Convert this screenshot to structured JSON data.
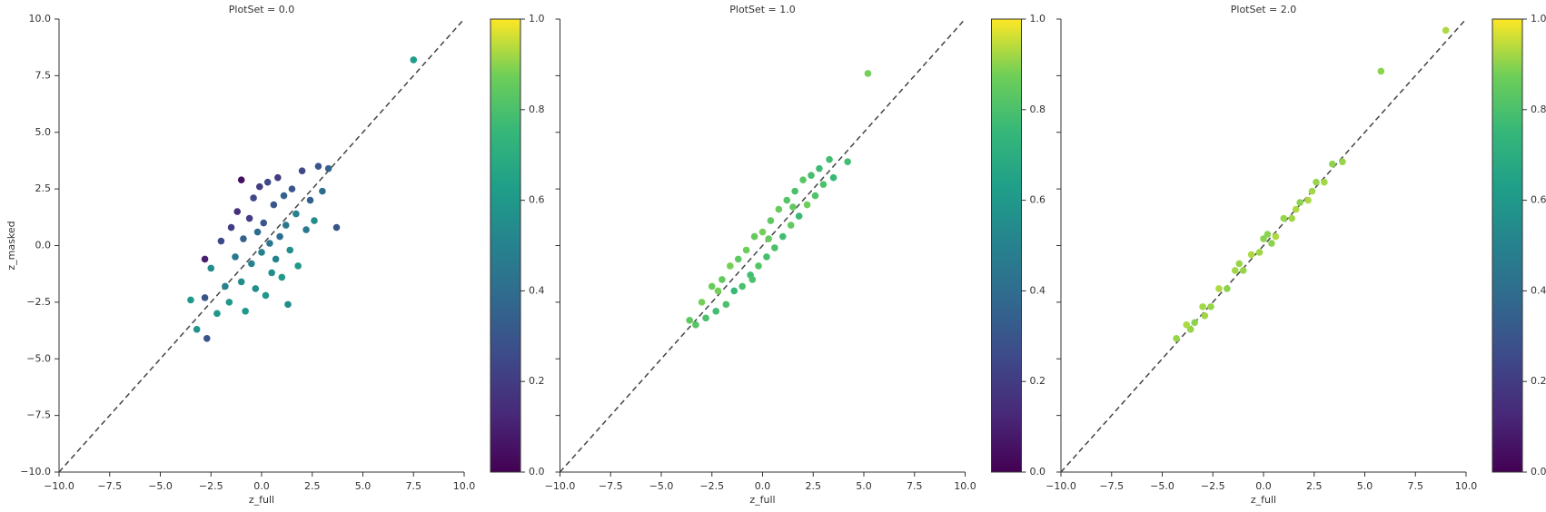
{
  "chart_data": [
    {
      "type": "scatter",
      "title": "PlotSet = 0.0",
      "xlabel": "z_full",
      "ylabel": "z_masked",
      "xlim": [
        -10,
        10
      ],
      "ylim": [
        -10,
        10
      ],
      "xticks": [
        {
          "value": -10,
          "label": "−10.0"
        },
        {
          "value": -7.5,
          "label": "−7.5"
        },
        {
          "value": -5,
          "label": "−5.0"
        },
        {
          "value": -2.5,
          "label": "−2.5"
        },
        {
          "value": 0,
          "label": "0.0"
        },
        {
          "value": 2.5,
          "label": "2.5"
        },
        {
          "value": 5,
          "label": "5.0"
        },
        {
          "value": 7.5,
          "label": "7.5"
        },
        {
          "value": 10,
          "label": "10.0"
        }
      ],
      "yticks": [
        {
          "value": -10,
          "label": "−10.0"
        },
        {
          "value": -7.5,
          "label": "−7.5"
        },
        {
          "value": -5,
          "label": "−5.0"
        },
        {
          "value": -2.5,
          "label": "−2.5"
        },
        {
          "value": 0,
          "label": "0.0"
        },
        {
          "value": 2.5,
          "label": "2.5"
        },
        {
          "value": 5,
          "label": "5.0"
        },
        {
          "value": 7.5,
          "label": "7.5"
        },
        {
          "value": 10,
          "label": "10.0"
        }
      ],
      "ytick_labels": true,
      "x": [
        -2.8,
        -2.5,
        -2.2,
        -2.0,
        -1.8,
        -1.6,
        -1.5,
        -1.3,
        -1.2,
        -1.0,
        -0.9,
        -0.8,
        -0.6,
        -0.5,
        -0.4,
        -0.3,
        -0.2,
        -0.1,
        0.0,
        0.1,
        0.2,
        0.3,
        0.4,
        0.5,
        0.6,
        0.7,
        0.8,
        0.9,
        1.0,
        1.1,
        1.2,
        1.4,
        1.5,
        1.7,
        1.8,
        2.0,
        2.2,
        2.4,
        2.6,
        2.8,
        3.0,
        3.3,
        -3.5,
        -3.2,
        -2.7,
        3.7,
        7.5,
        -2.8,
        1.3,
        -1.0
      ],
      "y": [
        -2.3,
        -1.0,
        -3.0,
        0.2,
        -1.8,
        -2.5,
        0.8,
        -0.5,
        1.5,
        -1.6,
        0.3,
        -2.9,
        1.2,
        -0.8,
        2.1,
        -1.9,
        0.6,
        2.6,
        -0.3,
        1.0,
        -2.2,
        2.8,
        0.1,
        -1.2,
        1.8,
        -0.6,
        3.0,
        0.4,
        -1.4,
        2.2,
        0.9,
        -0.2,
        2.5,
        1.4,
        -0.9,
        3.3,
        0.7,
        2.0,
        1.1,
        3.5,
        2.4,
        3.4,
        -2.4,
        -3.7,
        -4.1,
        0.8,
        8.2,
        -0.6,
        -2.6,
        2.9
      ],
      "c": [
        0.3,
        0.55,
        0.6,
        0.25,
        0.5,
        0.6,
        0.2,
        0.45,
        0.15,
        0.55,
        0.35,
        0.6,
        0.2,
        0.5,
        0.25,
        0.55,
        0.4,
        0.2,
        0.5,
        0.3,
        0.6,
        0.25,
        0.45,
        0.55,
        0.3,
        0.5,
        0.2,
        0.4,
        0.6,
        0.35,
        0.45,
        0.55,
        0.3,
        0.5,
        0.6,
        0.25,
        0.45,
        0.35,
        0.55,
        0.3,
        0.4,
        0.35,
        0.6,
        0.58,
        0.3,
        0.3,
        0.62,
        0.1,
        0.55,
        0.05
      ],
      "colormap": "viridis",
      "clim": [
        0,
        1
      ],
      "cticks": [
        {
          "value": 0,
          "label": "0.0"
        },
        {
          "value": 0.2,
          "label": "0.2"
        },
        {
          "value": 0.4,
          "label": "0.4"
        },
        {
          "value": 0.6,
          "label": "0.6"
        },
        {
          "value": 0.8,
          "label": "0.8"
        },
        {
          "value": 1,
          "label": "1.0"
        }
      ]
    },
    {
      "type": "scatter",
      "title": "PlotSet = 1.0",
      "xlabel": "z_full",
      "xlim": [
        -10,
        10
      ],
      "ylim": [
        -10,
        10
      ],
      "xticks": [
        {
          "value": -10,
          "label": "−10.0"
        },
        {
          "value": -7.5,
          "label": "−7.5"
        },
        {
          "value": -5,
          "label": "−5.0"
        },
        {
          "value": -2.5,
          "label": "−2.5"
        },
        {
          "value": 0,
          "label": "0.0"
        },
        {
          "value": 2.5,
          "label": "2.5"
        },
        {
          "value": 5,
          "label": "5.0"
        },
        {
          "value": 7.5,
          "label": "7.5"
        },
        {
          "value": 10,
          "label": "10.0"
        }
      ],
      "yticks": [
        -10,
        -7.5,
        -5,
        -2.5,
        0,
        2.5,
        5,
        7.5,
        10
      ],
      "ytick_labels": false,
      "x": [
        -3.3,
        -3.0,
        -2.8,
        -2.5,
        -2.3,
        -2.0,
        -1.8,
        -1.6,
        -1.4,
        -1.2,
        -1.0,
        -0.8,
        -0.6,
        -0.4,
        -0.2,
        0.0,
        0.2,
        0.4,
        0.6,
        0.8,
        1.0,
        1.2,
        1.4,
        1.6,
        1.8,
        2.0,
        2.2,
        2.4,
        2.6,
        2.8,
        3.0,
        3.3,
        3.5,
        4.2,
        5.2,
        -3.6,
        1.5,
        -0.5,
        0.3,
        -2.2
      ],
      "y": [
        -3.5,
        -2.5,
        -3.2,
        -1.8,
        -2.9,
        -1.5,
        -2.6,
        -0.9,
        -2.0,
        -0.6,
        -1.8,
        -0.2,
        -1.3,
        0.4,
        -0.9,
        0.6,
        -0.5,
        1.1,
        -0.1,
        1.6,
        0.4,
        2.0,
        0.9,
        2.4,
        1.3,
        2.9,
        1.8,
        3.1,
        2.2,
        3.4,
        2.7,
        3.8,
        3.0,
        3.7,
        7.6,
        -3.3,
        1.7,
        -1.5,
        0.3,
        -2.0
      ],
      "c": [
        0.82,
        0.88,
        0.8,
        0.86,
        0.78,
        0.85,
        0.8,
        0.88,
        0.76,
        0.84,
        0.8,
        0.87,
        0.78,
        0.85,
        0.82,
        0.88,
        0.79,
        0.84,
        0.8,
        0.86,
        0.78,
        0.82,
        0.85,
        0.8,
        0.76,
        0.83,
        0.87,
        0.79,
        0.81,
        0.77,
        0.8,
        0.78,
        0.76,
        0.78,
        0.88,
        0.84,
        0.85,
        0.8,
        0.86,
        0.88
      ],
      "colormap": "viridis",
      "clim": [
        0,
        1
      ],
      "cticks": [
        {
          "value": 0,
          "label": "0.0"
        },
        {
          "value": 0.2,
          "label": "0.2"
        },
        {
          "value": 0.4,
          "label": "0.4"
        },
        {
          "value": 0.6,
          "label": "0.6"
        },
        {
          "value": 0.8,
          "label": "0.8"
        },
        {
          "value": 1,
          "label": "1.0"
        }
      ]
    },
    {
      "type": "scatter",
      "title": "PlotSet = 2.0",
      "xlabel": "z_full",
      "xlim": [
        -10,
        10
      ],
      "ylim": [
        -10,
        10
      ],
      "xticks": [
        {
          "value": -10,
          "label": "−10.0"
        },
        {
          "value": -7.5,
          "label": "−7.5"
        },
        {
          "value": -5,
          "label": "−5.0"
        },
        {
          "value": -2.5,
          "label": "−2.5"
        },
        {
          "value": 0,
          "label": "0.0"
        },
        {
          "value": 2.5,
          "label": "2.5"
        },
        {
          "value": 5,
          "label": "5.0"
        },
        {
          "value": 7.5,
          "label": "7.5"
        },
        {
          "value": 10,
          "label": "10.0"
        }
      ],
      "yticks": [
        -10,
        -7.5,
        -5,
        -2.5,
        0,
        2.5,
        5,
        7.5,
        10
      ],
      "ytick_labels": false,
      "x": [
        -4.3,
        -3.8,
        -3.4,
        -3.0,
        -2.6,
        -2.2,
        -1.8,
        -1.4,
        -1.0,
        -0.6,
        -0.2,
        0.2,
        0.6,
        1.0,
        1.4,
        1.8,
        2.2,
        2.6,
        3.0,
        3.4,
        3.9,
        5.8,
        9.0,
        -2.9,
        -1.2,
        0.4,
        1.6,
        2.4,
        -3.6,
        0.0
      ],
      "y": [
        -4.1,
        -3.5,
        -3.4,
        -2.7,
        -2.7,
        -1.9,
        -1.9,
        -1.1,
        -1.1,
        -0.4,
        -0.3,
        0.5,
        0.4,
        1.2,
        1.2,
        1.9,
        2.0,
        2.8,
        2.8,
        3.6,
        3.7,
        7.7,
        9.5,
        -3.1,
        -0.8,
        0.1,
        1.6,
        2.4,
        -3.7,
        0.3
      ],
      "c": [
        0.91,
        0.93,
        0.9,
        0.92,
        0.91,
        0.93,
        0.9,
        0.92,
        0.91,
        0.93,
        0.92,
        0.9,
        0.93,
        0.91,
        0.92,
        0.9,
        0.93,
        0.91,
        0.92,
        0.9,
        0.91,
        0.9,
        0.93,
        0.92,
        0.91,
        0.9,
        0.93,
        0.92,
        0.91,
        0.9
      ],
      "colormap": "viridis",
      "clim": [
        0,
        1
      ],
      "cticks": [
        {
          "value": 0,
          "label": "0.0"
        },
        {
          "value": 0.2,
          "label": "0.2"
        },
        {
          "value": 0.4,
          "label": "0.4"
        },
        {
          "value": 0.6,
          "label": "0.6"
        },
        {
          "value": 0.8,
          "label": "0.8"
        },
        {
          "value": 1,
          "label": "1.0"
        }
      ]
    }
  ]
}
